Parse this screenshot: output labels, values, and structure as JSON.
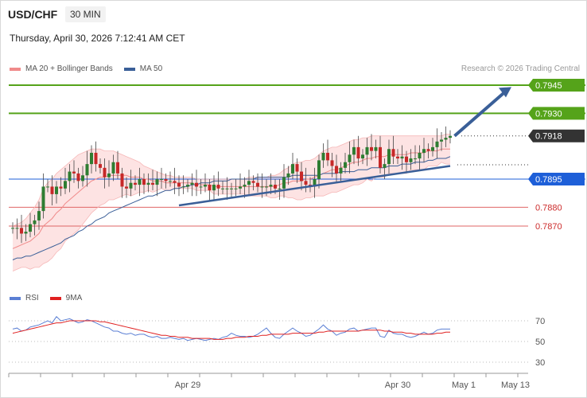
{
  "header": {
    "symbol": "USD/CHF",
    "timeframe": "30 MIN",
    "datetime": "Thursday, April 30, 2026 7:12:41 AM CET",
    "copyright": "Research © 2026 Trading Central"
  },
  "legend_main": [
    {
      "label": "MA 20 + Bollinger Bands",
      "color": "#f08a8a"
    },
    {
      "label": "MA 50",
      "color": "#3a5f98"
    }
  ],
  "legend_rsi": [
    {
      "label": "RSI",
      "color": "#5b7fd4"
    },
    {
      "label": "9MA",
      "color": "#e02020"
    }
  ],
  "colors": {
    "up": "#2e7d32",
    "down": "#c62828",
    "resistance": "#55a31a",
    "current": "#333333",
    "pivot": "#1e5fd8",
    "support": "#e06666",
    "band_fill": "#fde0e0",
    "trend": "#3a5f98"
  },
  "chart_data": [
    {
      "type": "candlestick",
      "y_scale": {
        "price_a": 0.7945,
        "price_b": 0.787
      },
      "levels": [
        {
          "value": 0.7945,
          "label": "0.7945",
          "kind": "resistance"
        },
        {
          "value": 0.793,
          "label": "0.7930",
          "kind": "resistance"
        },
        {
          "value": 0.7918,
          "label": "0.7918",
          "kind": "current"
        },
        {
          "value": 0.7895,
          "label": "0.7895",
          "kind": "pivot"
        },
        {
          "value": 0.788,
          "label": "0.7880",
          "kind": "support"
        },
        {
          "value": 0.787,
          "label": "0.7870",
          "kind": "support"
        }
      ],
      "x_ticks": [
        "Apr 29",
        "Apr 30",
        "May 1",
        "May 13"
      ],
      "closes": [
        0.7869,
        0.7869,
        0.7866,
        0.7867,
        0.7871,
        0.7873,
        0.7878,
        0.7891,
        0.7891,
        0.7887,
        0.7891,
        0.789,
        0.7894,
        0.7899,
        0.7898,
        0.7894,
        0.7897,
        0.7903,
        0.7909,
        0.7903,
        0.7901,
        0.7896,
        0.7898,
        0.7904,
        0.7898,
        0.7891,
        0.789,
        0.7893,
        0.7892,
        0.7895,
        0.7892,
        0.7893,
        0.7892,
        0.7895,
        0.7895,
        0.7894,
        0.7894,
        0.7893,
        0.7891,
        0.7891,
        0.7892,
        0.7893,
        0.7891,
        0.7891,
        0.7892,
        0.7889,
        0.7892,
        0.789,
        0.789,
        0.789,
        0.789,
        0.789,
        0.7891,
        0.7892,
        0.7894,
        0.7893,
        0.7891,
        0.7891,
        0.7891,
        0.7892,
        0.789,
        0.789,
        0.7896,
        0.7898,
        0.7903,
        0.7899,
        0.7894,
        0.7892,
        0.7891,
        0.7895,
        0.7905,
        0.7909,
        0.7905,
        0.7902,
        0.7898,
        0.7901,
        0.7904,
        0.7908,
        0.7912,
        0.7906,
        0.7908,
        0.7912,
        0.791,
        0.7912,
        0.7901,
        0.7903,
        0.7911,
        0.7907,
        0.7906,
        0.7907,
        0.7904,
        0.7906,
        0.7906,
        0.7909,
        0.7911,
        0.791,
        0.7912,
        0.7915,
        0.7916,
        0.7917,
        0.7918
      ],
      "ma20": [
        0.7858,
        0.7859,
        0.786,
        0.7861,
        0.7862,
        0.7864,
        0.7866,
        0.787,
        0.7872,
        0.7874,
        0.7877,
        0.7879,
        0.7882,
        0.7884,
        0.7886,
        0.7888,
        0.789,
        0.7892,
        0.7894,
        0.7895,
        0.7896,
        0.7896,
        0.7897,
        0.7897,
        0.7897,
        0.7897,
        0.7897,
        0.7896,
        0.7896,
        0.7896,
        0.7895,
        0.7895,
        0.7894,
        0.7894,
        0.7894,
        0.7893,
        0.7893,
        0.7893,
        0.7893,
        0.7893,
        0.7893,
        0.7893,
        0.7892,
        0.7892,
        0.7892,
        0.7892,
        0.7891,
        0.7891,
        0.7891,
        0.7891,
        0.7891,
        0.7891,
        0.7891,
        0.7891,
        0.7891,
        0.7891,
        0.7891,
        0.7891,
        0.7891,
        0.7891,
        0.7891,
        0.7892,
        0.7893,
        0.7893,
        0.7894,
        0.7894,
        0.7894,
        0.7895,
        0.7895,
        0.7896,
        0.7897,
        0.7898,
        0.7899,
        0.79,
        0.79,
        0.7901,
        0.7902,
        0.7903,
        0.7904,
        0.7904,
        0.7905,
        0.7906,
        0.7906,
        0.7907,
        0.7907,
        0.7907,
        0.7908,
        0.7908,
        0.7908,
        0.7908,
        0.7908,
        0.7909,
        0.7909,
        0.7909,
        0.7909,
        0.791,
        0.791,
        0.791,
        0.7911,
        0.7911,
        0.7911
      ],
      "bb_upper": [
        0.787,
        0.7871,
        0.7872,
        0.7874,
        0.7877,
        0.788,
        0.7884,
        0.789,
        0.7893,
        0.7895,
        0.7898,
        0.79,
        0.7902,
        0.7904,
        0.7906,
        0.7908,
        0.7909,
        0.791,
        0.7911,
        0.7911,
        0.7911,
        0.791,
        0.791,
        0.791,
        0.7909,
        0.7908,
        0.7907,
        0.7906,
        0.7905,
        0.7904,
        0.7902,
        0.7901,
        0.79,
        0.7899,
        0.7898,
        0.7897,
        0.7897,
        0.7896,
        0.7896,
        0.7896,
        0.7896,
        0.7896,
        0.7895,
        0.7895,
        0.7895,
        0.7895,
        0.7895,
        0.7895,
        0.7895,
        0.7895,
        0.7895,
        0.7895,
        0.7895,
        0.7895,
        0.7896,
        0.7896,
        0.7896,
        0.7896,
        0.7896,
        0.7897,
        0.7897,
        0.7898,
        0.79,
        0.7901,
        0.7903,
        0.7904,
        0.7904,
        0.7905,
        0.7905,
        0.7906,
        0.7908,
        0.791,
        0.7911,
        0.7912,
        0.7912,
        0.7913,
        0.7914,
        0.7915,
        0.7916,
        0.7916,
        0.7917,
        0.7917,
        0.7918,
        0.7918,
        0.7918,
        0.7918,
        0.7918,
        0.7918,
        0.7918,
        0.7918,
        0.7918,
        0.7918,
        0.7918,
        0.7918,
        0.7918,
        0.7918,
        0.7918,
        0.7918,
        0.7918,
        0.7919,
        0.7919
      ],
      "bb_lower": [
        0.7846,
        0.7847,
        0.7848,
        0.7848,
        0.7847,
        0.7848,
        0.7848,
        0.785,
        0.7851,
        0.7853,
        0.7856,
        0.7858,
        0.7862,
        0.7864,
        0.7866,
        0.7868,
        0.7871,
        0.7874,
        0.7877,
        0.7879,
        0.7881,
        0.7882,
        0.7884,
        0.7884,
        0.7885,
        0.7886,
        0.7887,
        0.7886,
        0.7887,
        0.7888,
        0.7888,
        0.7889,
        0.7888,
        0.7889,
        0.789,
        0.7889,
        0.7889,
        0.789,
        0.789,
        0.789,
        0.789,
        0.789,
        0.7889,
        0.7889,
        0.7889,
        0.7889,
        0.7887,
        0.7887,
        0.7887,
        0.7887,
        0.7887,
        0.7887,
        0.7887,
        0.7887,
        0.7886,
        0.7886,
        0.7886,
        0.7886,
        0.7886,
        0.7885,
        0.7885,
        0.7886,
        0.7886,
        0.7885,
        0.7885,
        0.7884,
        0.7884,
        0.7885,
        0.7885,
        0.7886,
        0.7886,
        0.7886,
        0.7887,
        0.7888,
        0.7888,
        0.7889,
        0.789,
        0.7891,
        0.7892,
        0.7892,
        0.7893,
        0.7895,
        0.7894,
        0.7896,
        0.7896,
        0.7896,
        0.7898,
        0.7898,
        0.7898,
        0.7898,
        0.7898,
        0.79,
        0.79,
        0.79,
        0.79,
        0.7902,
        0.7902,
        0.7902,
        0.7904,
        0.7903,
        0.7903
      ],
      "ma50": [
        0.7852,
        0.7853,
        0.7853,
        0.7854,
        0.7854,
        0.7855,
        0.7856,
        0.7857,
        0.7858,
        0.7859,
        0.786,
        0.7861,
        0.7863,
        0.7864,
        0.7865,
        0.7867,
        0.7868,
        0.787,
        0.7871,
        0.7873,
        0.7874,
        0.7875,
        0.7877,
        0.7878,
        0.7879,
        0.788,
        0.7881,
        0.7882,
        0.7883,
        0.7884,
        0.7885,
        0.7886,
        0.7886,
        0.7887,
        0.7888,
        0.7889,
        0.7889,
        0.789,
        0.789,
        0.7891,
        0.7891,
        0.7892,
        0.7892,
        0.7893,
        0.7893,
        0.7893,
        0.7894,
        0.7894,
        0.7894,
        0.7894,
        0.7895,
        0.7895,
        0.7895,
        0.7895,
        0.7895,
        0.7895,
        0.7896,
        0.7896,
        0.7896,
        0.7896,
        0.7896,
        0.7896,
        0.7896,
        0.7896,
        0.7897,
        0.7897,
        0.7897,
        0.7897,
        0.7897,
        0.7897,
        0.7897,
        0.7898,
        0.7898,
        0.7898,
        0.7898,
        0.7899,
        0.7899,
        0.7899,
        0.7899,
        0.79,
        0.79,
        0.79,
        0.7901,
        0.7901,
        0.7901,
        0.7901,
        0.7902,
        0.7902,
        0.7902,
        0.7903,
        0.7903,
        0.7903,
        0.7904,
        0.7904,
        0.7904,
        0.7905,
        0.7905,
        0.7906,
        0.7906,
        0.7906,
        0.7907
      ],
      "trend_line": [
        [
          38,
          0.7881
        ],
        [
          100,
          0.7902
        ]
      ],
      "forecast_arrow": [
        [
          101,
          0.7918
        ],
        [
          114,
          0.7944
        ]
      ]
    },
    {
      "type": "line",
      "name": "RSI",
      "yticks": [
        70,
        50,
        30
      ],
      "rsi": [
        62,
        63,
        60,
        61,
        64,
        65,
        66,
        68,
        70,
        68,
        74,
        70,
        71,
        72,
        70,
        68,
        69,
        71,
        70,
        68,
        66,
        64,
        63,
        60,
        60,
        58,
        57,
        58,
        56,
        57,
        57,
        55,
        54,
        55,
        53,
        53,
        54,
        53,
        52,
        53,
        51,
        52,
        53,
        52,
        51,
        52,
        53,
        52,
        54,
        55,
        58,
        56,
        55,
        55,
        54,
        55,
        57,
        60,
        63,
        58,
        54,
        53,
        57,
        60,
        63,
        60,
        58,
        55,
        56,
        59,
        62,
        66,
        62,
        60,
        56,
        58,
        59,
        62,
        63,
        60,
        61,
        62,
        63,
        63,
        55,
        54,
        61,
        58,
        57,
        57,
        55,
        54,
        55,
        57,
        59,
        57,
        58,
        61,
        62,
        62,
        62
      ],
      "ma9": [
        58,
        59,
        60,
        61,
        62,
        63,
        64,
        65,
        66,
        67,
        68,
        68,
        69,
        70,
        70,
        70,
        70,
        70,
        70,
        70,
        69,
        69,
        68,
        67,
        66,
        65,
        64,
        63,
        62,
        61,
        60,
        59,
        58,
        57,
        56,
        56,
        55,
        55,
        54,
        54,
        54,
        53,
        53,
        53,
        53,
        53,
        52,
        52,
        52,
        53,
        53,
        54,
        54,
        54,
        55,
        55,
        55,
        56,
        56,
        57,
        57,
        57,
        57,
        57,
        58,
        58,
        58,
        58,
        58,
        58,
        59,
        59,
        60,
        60,
        60,
        60,
        60,
        60,
        60,
        60,
        61,
        61,
        61,
        61,
        61,
        60,
        60,
        59,
        59,
        59,
        58,
        58,
        57,
        57,
        57,
        57,
        57,
        58,
        58,
        59,
        59
      ]
    }
  ]
}
